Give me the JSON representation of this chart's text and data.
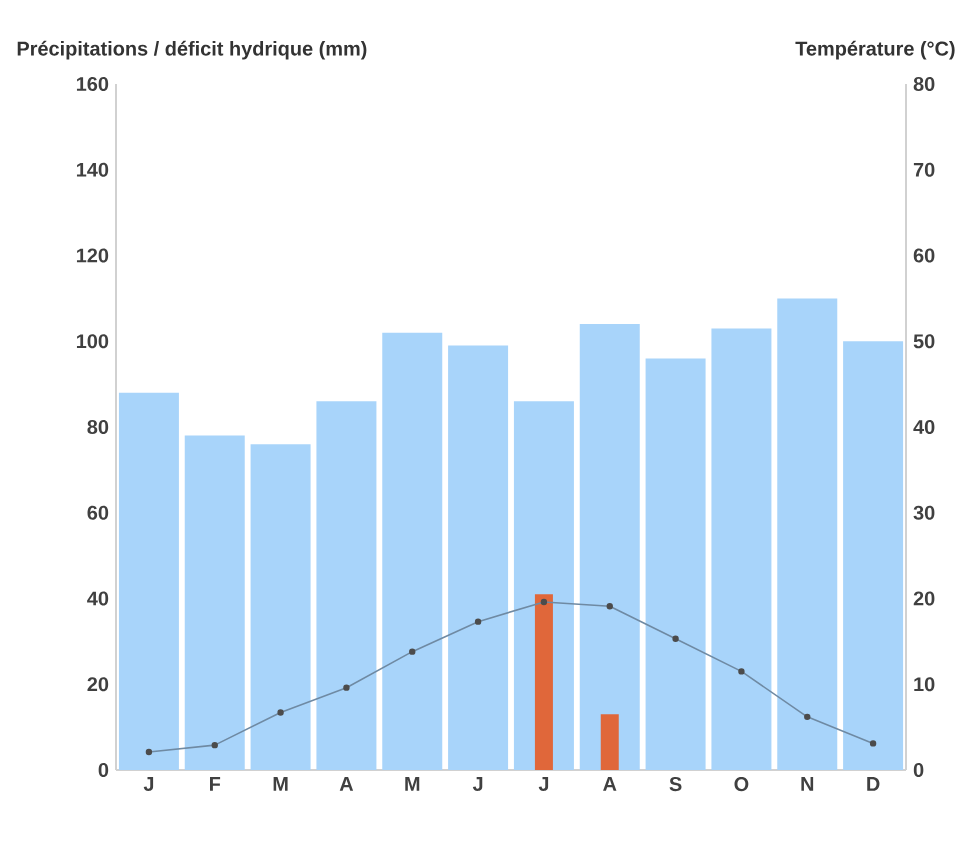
{
  "chart_data": {
    "type": "bar",
    "ylabel": "Précipitations / déficit hydrique (mm)",
    "y2label": "Température (°C)",
    "categories": [
      "J",
      "F",
      "M",
      "A",
      "M",
      "J",
      "J",
      "A",
      "S",
      "O",
      "N",
      "D"
    ],
    "series": [
      {
        "color": "#a8d4fa",
        "values": [
          88,
          78,
          76,
          86,
          102,
          99,
          86,
          104,
          96,
          103,
          110,
          100
        ]
      },
      {
        "color": "#e0673a",
        "values": [
          null,
          null,
          null,
          null,
          null,
          null,
          41,
          13,
          null,
          null,
          null,
          null
        ]
      },
      {
        "type": "line",
        "axis": "y2",
        "color": "#6f8aa3",
        "marker": "circle",
        "values": [
          2.1,
          2.9,
          6.7,
          9.6,
          13.8,
          17.3,
          19.6,
          19.1,
          15.3,
          11.5,
          6.2,
          3.1
        ]
      }
    ],
    "ylim": [
      0,
      160
    ],
    "yticks": [
      0,
      20,
      40,
      60,
      80,
      100,
      120,
      140,
      160
    ],
    "y2lim": [
      0,
      80
    ],
    "y2ticks": [
      0,
      10,
      20,
      30,
      40,
      50,
      60,
      70,
      80
    ],
    "grid": false,
    "legend": false
  }
}
